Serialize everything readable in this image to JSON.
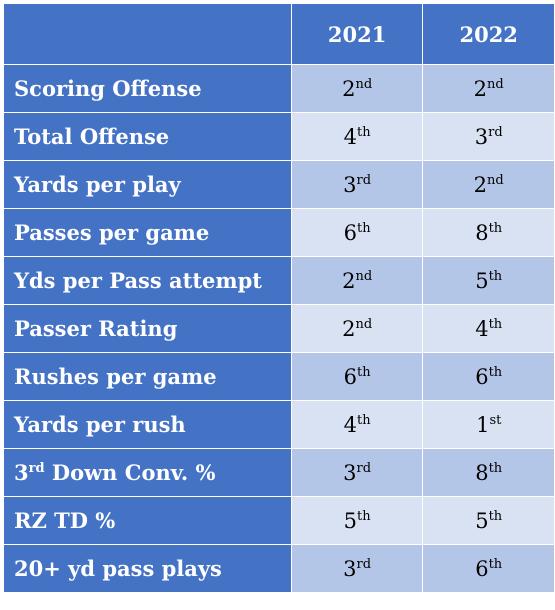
{
  "header": {
    "corner": "",
    "year1": "2021",
    "year2": "2022"
  },
  "colors": {
    "header_bg": "#4472c4",
    "row_dark": "#b4c6e7",
    "row_light": "#d9e2f3"
  },
  "rows": [
    {
      "label_pre": "Scoring Offense",
      "label_sup": "",
      "label_post": "",
      "v2021": "2",
      "s2021": "nd",
      "v2022": "2",
      "s2022": "nd"
    },
    {
      "label_pre": "Total Offense",
      "label_sup": "",
      "label_post": "",
      "v2021": "4",
      "s2021": "th",
      "v2022": "3",
      "s2022": "rd"
    },
    {
      "label_pre": "Yards per play",
      "label_sup": "",
      "label_post": "",
      "v2021": "3",
      "s2021": "rd",
      "v2022": "2",
      "s2022": "nd"
    },
    {
      "label_pre": "Passes per game",
      "label_sup": "",
      "label_post": "",
      "v2021": "6",
      "s2021": "th",
      "v2022": "8",
      "s2022": "th"
    },
    {
      "label_pre": "Yds per Pass attempt",
      "label_sup": "",
      "label_post": "",
      "v2021": "2",
      "s2021": "nd",
      "v2022": "5",
      "s2022": "th"
    },
    {
      "label_pre": "Passer Rating",
      "label_sup": "",
      "label_post": "",
      "v2021": "2",
      "s2021": "nd",
      "v2022": "4",
      "s2022": "th"
    },
    {
      "label_pre": "Rushes per game",
      "label_sup": "",
      "label_post": "",
      "v2021": "6",
      "s2021": "th",
      "v2022": "6",
      "s2022": "th"
    },
    {
      "label_pre": "Yards per rush",
      "label_sup": "",
      "label_post": "",
      "v2021": "4",
      "s2021": "th",
      "v2022": "1",
      "s2022": "st"
    },
    {
      "label_pre": "3",
      "label_sup": "rd",
      "label_post": " Down Conv. %",
      "v2021": "3",
      "s2021": "rd",
      "v2022": "8",
      "s2022": "th"
    },
    {
      "label_pre": "RZ TD %",
      "label_sup": "",
      "label_post": "",
      "v2021": "5",
      "s2021": "th",
      "v2022": "5",
      "s2022": "th"
    },
    {
      "label_pre": "20+ yd pass plays",
      "label_sup": "",
      "label_post": "",
      "v2021": "3",
      "s2021": "rd",
      "v2022": "6",
      "s2022": "th"
    }
  ]
}
